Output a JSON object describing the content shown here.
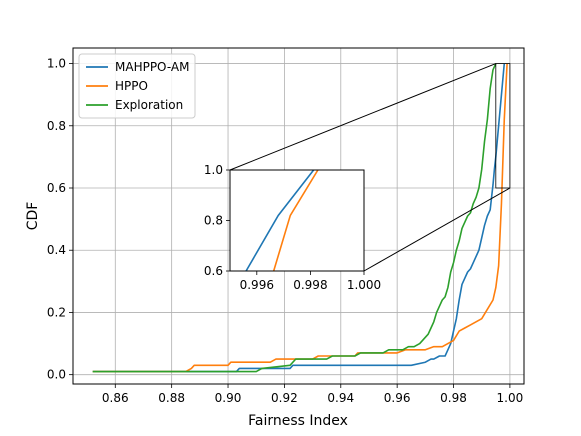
{
  "chart_data": {
    "type": "line",
    "title": "",
    "xlabel": "Fairness Index",
    "ylabel": "CDF",
    "xlim": [
      0.845,
      1.005
    ],
    "ylim": [
      -0.03,
      1.05
    ],
    "xticks": [
      0.86,
      0.88,
      0.9,
      0.92,
      0.94,
      0.96,
      0.98,
      1.0
    ],
    "xtick_labels": [
      "0.86",
      "0.88",
      "0.90",
      "0.92",
      "0.94",
      "0.96",
      "0.98",
      "1.00"
    ],
    "yticks": [
      0.0,
      0.2,
      0.4,
      0.6,
      0.8,
      1.0
    ],
    "ytick_labels": [
      "0.0",
      "0.2",
      "0.4",
      "0.6",
      "0.8",
      "1.0"
    ],
    "grid": true,
    "legend_position": "top-left",
    "series": [
      {
        "name": "MAHPPO-AM",
        "color": "#1f77b4",
        "x": [
          0.852,
          0.903,
          0.904,
          0.922,
          0.923,
          0.944,
          0.945,
          0.965,
          0.97,
          0.972,
          0.973,
          0.975,
          0.977,
          0.978,
          0.979,
          0.98,
          0.981,
          0.982,
          0.983,
          0.984,
          0.985,
          0.986,
          0.987,
          0.988,
          0.989,
          0.99,
          0.991,
          0.992,
          0.993,
          0.9935,
          0.994,
          0.9945,
          0.995,
          0.9955,
          0.996,
          0.9965,
          0.997,
          0.9975,
          0.998
        ],
        "y": [
          0.01,
          0.01,
          0.02,
          0.02,
          0.03,
          0.03,
          0.03,
          0.03,
          0.04,
          0.05,
          0.05,
          0.06,
          0.06,
          0.08,
          0.1,
          0.14,
          0.18,
          0.24,
          0.29,
          0.31,
          0.33,
          0.34,
          0.36,
          0.38,
          0.4,
          0.44,
          0.48,
          0.51,
          0.53,
          0.57,
          0.61,
          0.66,
          0.7,
          0.75,
          0.8,
          0.85,
          0.9,
          0.95,
          1.0
        ]
      },
      {
        "name": "HPPO",
        "color": "#ff7f0e",
        "x": [
          0.852,
          0.885,
          0.887,
          0.888,
          0.9,
          0.901,
          0.915,
          0.917,
          0.93,
          0.932,
          0.945,
          0.946,
          0.96,
          0.963,
          0.97,
          0.973,
          0.976,
          0.978,
          0.98,
          0.982,
          0.984,
          0.986,
          0.988,
          0.99,
          0.992,
          0.994,
          0.995,
          0.996,
          0.997,
          0.998,
          0.999
        ],
        "y": [
          0.01,
          0.01,
          0.02,
          0.03,
          0.03,
          0.04,
          0.04,
          0.05,
          0.05,
          0.06,
          0.06,
          0.07,
          0.07,
          0.08,
          0.08,
          0.09,
          0.09,
          0.1,
          0.11,
          0.14,
          0.15,
          0.16,
          0.17,
          0.18,
          0.21,
          0.24,
          0.28,
          0.35,
          0.55,
          0.82,
          1.0
        ]
      },
      {
        "name": "Exploration",
        "color": "#2ca02c",
        "x": [
          0.852,
          0.91,
          0.912,
          0.922,
          0.924,
          0.935,
          0.937,
          0.945,
          0.947,
          0.955,
          0.957,
          0.962,
          0.964,
          0.966,
          0.968,
          0.97,
          0.971,
          0.972,
          0.973,
          0.974,
          0.975,
          0.976,
          0.977,
          0.978,
          0.979,
          0.98,
          0.981,
          0.982,
          0.983,
          0.984,
          0.985,
          0.986,
          0.987,
          0.988,
          0.989,
          0.99,
          0.991,
          0.992,
          0.993,
          0.994,
          0.995
        ],
        "y": [
          0.01,
          0.01,
          0.02,
          0.03,
          0.05,
          0.05,
          0.06,
          0.06,
          0.07,
          0.07,
          0.08,
          0.08,
          0.09,
          0.09,
          0.1,
          0.12,
          0.13,
          0.15,
          0.17,
          0.2,
          0.22,
          0.24,
          0.25,
          0.28,
          0.33,
          0.36,
          0.4,
          0.43,
          0.47,
          0.49,
          0.51,
          0.52,
          0.55,
          0.57,
          0.6,
          0.66,
          0.75,
          0.82,
          0.92,
          0.98,
          1.0
        ]
      }
    ],
    "inset": {
      "xlim": [
        0.995,
        1.0
      ],
      "ylim": [
        0.6,
        1.0
      ],
      "xticks": [
        0.996,
        0.998,
        1.0
      ],
      "xtick_labels": [
        "0.996",
        "0.998",
        "1.000"
      ],
      "yticks": [
        0.6,
        0.8,
        1.0
      ],
      "ytick_labels": [
        "0.6",
        "0.8",
        "1.0"
      ],
      "grid": false,
      "series": [
        {
          "name": "MAHPPO-AM",
          "color": "#1f77b4",
          "x": [
            0.9956,
            0.9968,
            0.99812
          ],
          "y": [
            0.6,
            0.82,
            1.0
          ]
        },
        {
          "name": "HPPO",
          "color": "#ff7f0e",
          "x": [
            0.99663,
            0.99725,
            0.99828
          ],
          "y": [
            0.6,
            0.82,
            1.0
          ]
        }
      ]
    }
  }
}
